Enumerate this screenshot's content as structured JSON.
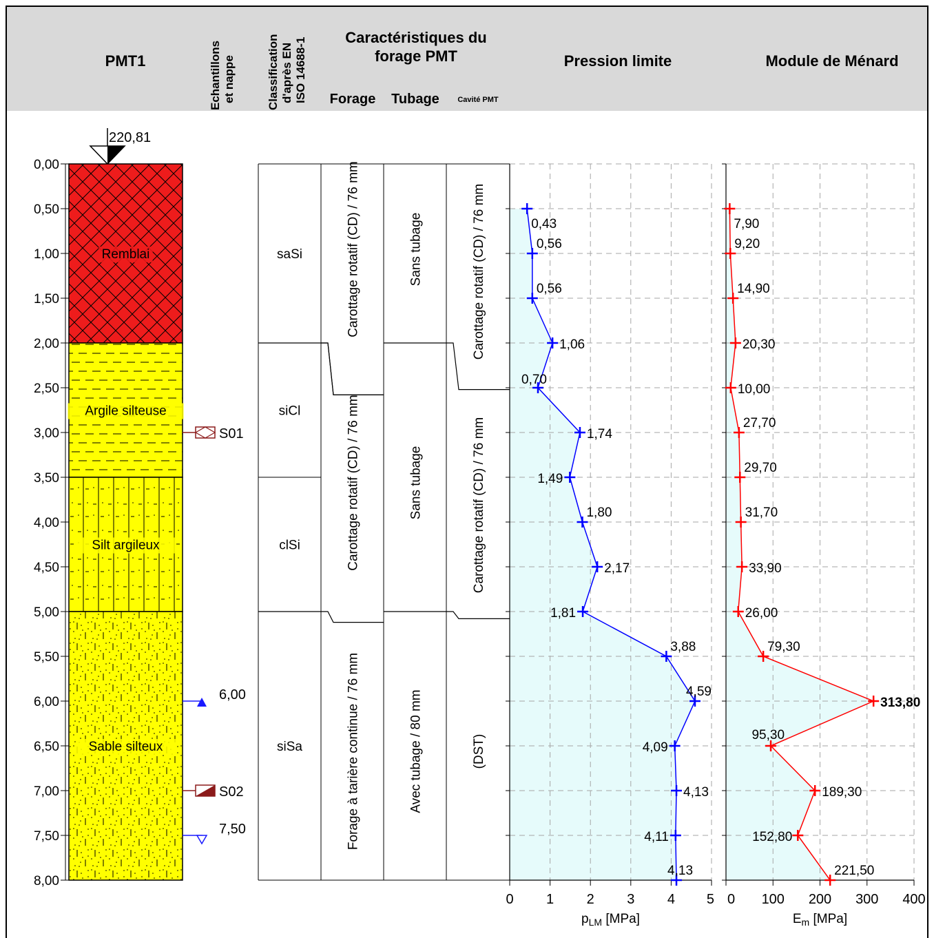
{
  "header": {
    "title": "PMT1",
    "samples_line1": "Echantillons",
    "samples_line2": "et nappe",
    "class_line1": "Classification",
    "class_line2": "d'après EN",
    "class_line3": "ISO 14688-1",
    "drill_title_line1": "Caractéristiques du",
    "drill_title_line2": "forage PMT",
    "drill_forage": "Forage",
    "drill_tubage": "Tubage",
    "drill_cavite": "Cavité PMT",
    "pl_title": "Pression limite",
    "em_title": "Module de Ménard"
  },
  "top_elevation": "220,81",
  "depth_ticks": [
    "0,00",
    "0,50",
    "1,00",
    "1,50",
    "2,00",
    "2,50",
    "3,00",
    "3,50",
    "4,00",
    "4,50",
    "5,00",
    "5,50",
    "6,00",
    "6,50",
    "7,00",
    "7,50",
    "8,00"
  ],
  "layers": [
    {
      "name": "Remblai",
      "top": 0,
      "bottom": 2.0,
      "color": "#ee1c1c",
      "pattern": "cross-hatch",
      "classification": "saSi"
    },
    {
      "name": "Argile silteuse",
      "top": 2.0,
      "bottom": 3.5,
      "color": "#ffff00",
      "pattern": "clay-dashes",
      "classification": "siCl"
    },
    {
      "name": "Silt argileux",
      "top": 3.5,
      "bottom": 5.0,
      "color": "#ffff00",
      "pattern": "silt-vertical",
      "classification": "clSi"
    },
    {
      "name": "Sable silteux",
      "top": 5.0,
      "bottom": 8.0,
      "color": "#ffff00",
      "pattern": "sand-dots",
      "classification": "siSa"
    }
  ],
  "samples": [
    {
      "label": "S01",
      "depth": 3.0,
      "color": "#8b1a1a",
      "icon": "sample-intact-icon"
    },
    {
      "label": "S02",
      "depth": 7.0,
      "color": "#8b1a1a",
      "icon": "sample-remanie-icon"
    }
  ],
  "water_levels": [
    {
      "label": "6,00",
      "depth": 6.0,
      "color": "#1a1aff",
      "icon": "water-filled-triangle-icon"
    },
    {
      "label": "7,50",
      "depth": 7.5,
      "color": "#1a1aff",
      "icon": "water-open-triangle-icon"
    }
  ],
  "drilling": {
    "forage": [
      {
        "label": "Carottage rotatif  (CD) / 76 mm",
        "top": 0,
        "bottom": 2.0
      },
      {
        "label": "Carottage rotatif (CD) / 76 mm",
        "top": 2.0,
        "bottom": 5.0
      },
      {
        "label": "Forage à tarière continue / 76 mm",
        "top": 5.0,
        "bottom": 8.0
      }
    ],
    "tubage": [
      {
        "label": "Sans tubage",
        "top": 0,
        "bottom": 2.0
      },
      {
        "label": "Sans tubage",
        "top": 2.0,
        "bottom": 5.0
      },
      {
        "label": "Avec tubage / 80 mm",
        "top": 5.0,
        "bottom": 8.0
      }
    ],
    "cavite": [
      {
        "label": "Carottage rotatif (CD) / 76 mm",
        "top": 0,
        "bottom": 2.5
      },
      {
        "label": "Carottage rotatif (CD) / 76 mm",
        "top": 2.5,
        "bottom": 5.0
      },
      {
        "label": "(DST)",
        "top": 5.0,
        "bottom": 8.0
      }
    ]
  },
  "chart_data": [
    {
      "type": "line",
      "title": "Pression limite",
      "xlabel": "pLM [MPa]",
      "xlabel_main": "p",
      "xlabel_sub": "LM",
      "xlabel_unit": " [MPa]",
      "ylabel": "",
      "xlim": [
        0,
        5
      ],
      "ylim": [
        8,
        0
      ],
      "xticks": [
        0,
        1,
        2,
        3,
        4,
        5
      ],
      "grid": true,
      "color": "#0000ff",
      "fill": "#e6fbfb",
      "depths": [
        0.5,
        1.0,
        1.5,
        2.0,
        2.5,
        3.0,
        3.5,
        4.0,
        4.5,
        5.0,
        5.5,
        6.0,
        6.5,
        7.0,
        7.5,
        8.0
      ],
      "values": [
        0.43,
        0.56,
        0.56,
        1.06,
        0.7,
        1.74,
        1.49,
        1.8,
        2.17,
        1.81,
        3.88,
        4.59,
        4.09,
        4.13,
        4.11,
        4.13
      ],
      "labels": [
        "0,43",
        "0,56",
        "0,56",
        "1,06",
        "0,70",
        "1,74",
        "1,49",
        "1,80",
        "2,17",
        "1,81",
        "3,88",
        "4,59",
        "4,09",
        "4,13",
        "4,11",
        "4,13"
      ]
    },
    {
      "type": "line",
      "title": "Module de Ménard",
      "xlabel": "Em [MPa]",
      "xlabel_main": "E",
      "xlabel_sub": "m",
      "xlabel_unit": " [MPa]",
      "ylabel": "",
      "xlim": [
        0,
        400
      ],
      "ylim": [
        8,
        0
      ],
      "xticks": [
        0,
        100,
        200,
        300,
        400
      ],
      "grid": true,
      "color": "#ff0000",
      "fill": "#e6fbfb",
      "depths": [
        0.5,
        1.0,
        1.5,
        2.0,
        2.5,
        3.0,
        3.5,
        4.0,
        4.5,
        5.0,
        5.5,
        6.0,
        6.5,
        7.0,
        7.5,
        8.0
      ],
      "values": [
        7.9,
        9.2,
        14.9,
        20.3,
        10.0,
        27.7,
        29.7,
        31.7,
        33.9,
        26.0,
        79.3,
        313.8,
        95.3,
        189.3,
        152.8,
        221.5
      ],
      "labels": [
        "7,90",
        "9,20",
        "14,90",
        "20,30",
        "10,00",
        "27,70",
        "29,70",
        "31,70",
        "33,90",
        "26,00",
        "79,30",
        "313,80",
        "95,30",
        "189,30",
        "152,80",
        "221,50"
      ],
      "bold_labels": [
        "313,80"
      ]
    }
  ]
}
